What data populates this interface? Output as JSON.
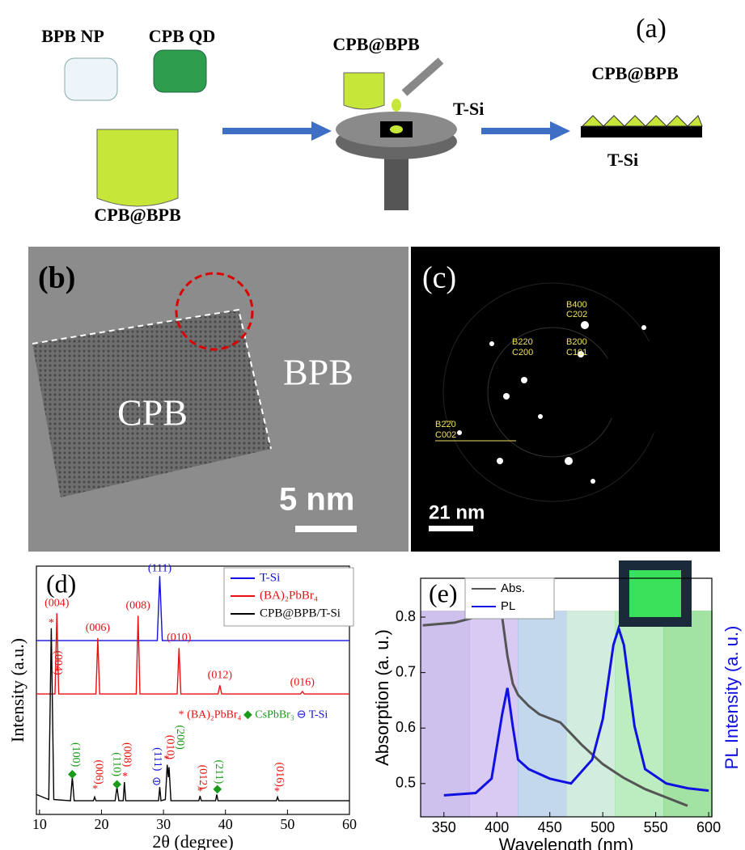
{
  "schematic": {
    "label": "(a)",
    "bpb_np": "BPB NP",
    "cpb_qd": "CPB QD",
    "mix": "CPB@BPB",
    "drop": "CPB@BPB",
    "substrate": "T-Si",
    "film": "CPB@BPB",
    "film_substrate": "T-Si"
  },
  "tem": {
    "label": "(b)",
    "cpb": "CPB",
    "bpb": "BPB",
    "scale": "5 nm"
  },
  "saed": {
    "label": "(c)",
    "scale": "21 nm",
    "spots": [
      "B400",
      "C202",
      "B220",
      "C200",
      "B200",
      "C101",
      "B2̄2̄0",
      "C002"
    ]
  },
  "chart_data": [
    {
      "type": "line",
      "label": "(d)",
      "xlabel": "2θ (degree)",
      "ylabel": "Intensity (a.u.)",
      "xlim": [
        9.5,
        60
      ],
      "xticks": [
        10,
        20,
        30,
        40,
        50,
        60
      ],
      "ylim": [
        0,
        100
      ],
      "series": [
        {
          "name": "T-Si",
          "color": "#1010e0",
          "x": [
            9.5,
            29.0,
            29.4,
            29.8,
            60
          ],
          "values": [
            70,
            70,
            96,
            70,
            70
          ]
        },
        {
          "name": "(BA)₂PbBr₄",
          "color": "#e81010",
          "x": [
            9.5,
            12.5,
            12.8,
            13.1,
            19.1,
            19.4,
            19.7,
            25.6,
            25.9,
            26.2,
            32.2,
            32.5,
            32.8,
            38.8,
            39.1,
            39.4,
            52.1,
            52.4,
            52.7,
            60
          ],
          "values": [
            48.5,
            48.5,
            81,
            48.5,
            48.5,
            71,
            48.5,
            48.5,
            80,
            48.5,
            48.5,
            67,
            48.5,
            48.5,
            52,
            48.5,
            48.5,
            49.5,
            48.5,
            48.5
          ]
        },
        {
          "name": "CPB@BPB/T-Si",
          "color": "#000000",
          "x": [
            9.5,
            11.5,
            11.9,
            12.3,
            15.0,
            15.3,
            15.6,
            18.7,
            18.9,
            19.1,
            22.2,
            22.5,
            22.8,
            23.5,
            23.7,
            23.9,
            29.2,
            29.4,
            29.6,
            30.3,
            30.6,
            30.8,
            30.9,
            31.2,
            35.7,
            35.9,
            36.1,
            38.4,
            38.6,
            38.8,
            48.2,
            48.4,
            48.6,
            60
          ],
          "values": [
            8,
            6,
            75,
            6,
            5.5,
            15,
            5.5,
            5.5,
            7,
            5.5,
            5.5,
            11,
            5.5,
            5.5,
            13,
            5.5,
            5.5,
            11,
            5.5,
            6,
            20,
            15,
            19,
            5.5,
            5.5,
            7.5,
            5.5,
            5.5,
            8,
            5.5,
            5.5,
            7,
            5.5,
            5.5
          ]
        }
      ],
      "annotations": [
        {
          "text": "(111)",
          "x": 29.4,
          "y": 99,
          "color": "#1010e0"
        },
        {
          "text": "(004)",
          "x": 12.8,
          "y": 85,
          "color": "#e81010"
        },
        {
          "text": "(006)",
          "x": 19.4,
          "y": 75,
          "color": "#e81010"
        },
        {
          "text": "(008)",
          "x": 25.9,
          "y": 84,
          "color": "#e81010"
        },
        {
          "text": "(010)",
          "x": 32.5,
          "y": 71,
          "color": "#e81010"
        },
        {
          "text": "(012)",
          "x": 39.1,
          "y": 56,
          "color": "#e81010"
        },
        {
          "text": "(016)",
          "x": 52.4,
          "y": 53,
          "color": "#e81010"
        },
        {
          "text": "*",
          "x": 11.9,
          "y": 77,
          "color": "#e81010"
        },
        {
          "text": "(004)",
          "x": 12.9,
          "y": 66,
          "color": "#e81010",
          "vertical": true
        },
        {
          "text": "◆",
          "x": 15.3,
          "y": 16,
          "color": "#1a9a1a"
        },
        {
          "text": "(100)",
          "x": 15.8,
          "y": 29,
          "color": "#1a9a1a",
          "vertical": true
        },
        {
          "text": "*",
          "x": 19,
          "y": 10,
          "color": "#e81010"
        },
        {
          "text": "(006)",
          "x": 19.5,
          "y": 22,
          "color": "#e81010",
          "vertical": true
        },
        {
          "text": "◆",
          "x": 22.5,
          "y": 12,
          "color": "#1a9a1a"
        },
        {
          "text": "(110)",
          "x": 22.4,
          "y": 25,
          "color": "#1a9a1a",
          "vertical": true
        },
        {
          "text": "*",
          "x": 23.8,
          "y": 15,
          "color": "#e81010"
        },
        {
          "text": "(008)",
          "x": 24.1,
          "y": 29,
          "color": "#e81010",
          "vertical": true
        },
        {
          "text": "⊖",
          "x": 28.9,
          "y": 13,
          "color": "#1010e0"
        },
        {
          "text": "(111)",
          "x": 29.0,
          "y": 27,
          "color": "#1010e0",
          "vertical": true
        },
        {
          "text": "*",
          "x": 30.5,
          "y": 22,
          "color": "#e81010"
        },
        {
          "text": "(010)",
          "x": 31.0,
          "y": 32,
          "color": "#e81010",
          "vertical": true
        },
        {
          "text": "(200)",
          "x": 32.6,
          "y": 36,
          "color": "#1a9a1a",
          "vertical": true
        },
        {
          "text": "*",
          "x": 35.9,
          "y": 9,
          "color": "#e81010"
        },
        {
          "text": "(012)",
          "x": 36.3,
          "y": 20,
          "color": "#e81010",
          "vertical": true
        },
        {
          "text": "◆",
          "x": 38.7,
          "y": 10,
          "color": "#1a9a1a"
        },
        {
          "text": "(211)",
          "x": 38.9,
          "y": 22,
          "color": "#1a9a1a",
          "vertical": true
        },
        {
          "text": "*",
          "x": 48.3,
          "y": 9,
          "color": "#e81010"
        },
        {
          "text": "(016)",
          "x": 48.7,
          "y": 21,
          "color": "#e81010",
          "vertical": true
        },
        {
          "text": "* (BA)₂PbBr₄",
          "x": 37.5,
          "y": 40,
          "color": "#e81010"
        },
        {
          "text": "◆ CsPbBr₃",
          "x": 47,
          "y": 40,
          "color": "#1a9a1a"
        },
        {
          "text": "⊖ T-Si",
          "x": 54,
          "y": 40,
          "color": "#1010e0"
        }
      ]
    },
    {
      "type": "line",
      "label": "(e)",
      "xlabel": "Wavelength (nm)",
      "ylabel": "Absorption (a. u.)",
      "y2label": "PL Intensity (a. u.)",
      "xlim": [
        328,
        603
      ],
      "xticks": [
        350,
        400,
        450,
        500,
        550,
        600
      ],
      "ylim": [
        0.44,
        0.87
      ],
      "yticks": [
        0.5,
        0.6,
        0.7,
        0.8
      ],
      "y2lim": [
        0,
        100
      ],
      "series": [
        {
          "name": "Abs.",
          "color": "#555555",
          "x": [
            330,
            360,
            380,
            395,
            400,
            405,
            410,
            415,
            420,
            430,
            440,
            460,
            480,
            500,
            520,
            540,
            560,
            580
          ],
          "values": [
            0.785,
            0.79,
            0.8,
            0.835,
            0.835,
            0.8,
            0.73,
            0.68,
            0.66,
            0.64,
            0.625,
            0.61,
            0.57,
            0.535,
            0.51,
            0.49,
            0.475,
            0.46
          ]
        },
        {
          "name": "PL",
          "color": "#1010e0",
          "axis": "y2",
          "x": [
            350,
            380,
            395,
            405,
            410,
            415,
            420,
            430,
            450,
            470,
            490,
            500,
            510,
            515,
            520,
            530,
            540,
            560,
            580,
            600
          ],
          "values": [
            9,
            10,
            16,
            43,
            54,
            38,
            24,
            20,
            16,
            14,
            24,
            41,
            72,
            79,
            72,
            38,
            20,
            14,
            12,
            11
          ]
        }
      ]
    }
  ]
}
